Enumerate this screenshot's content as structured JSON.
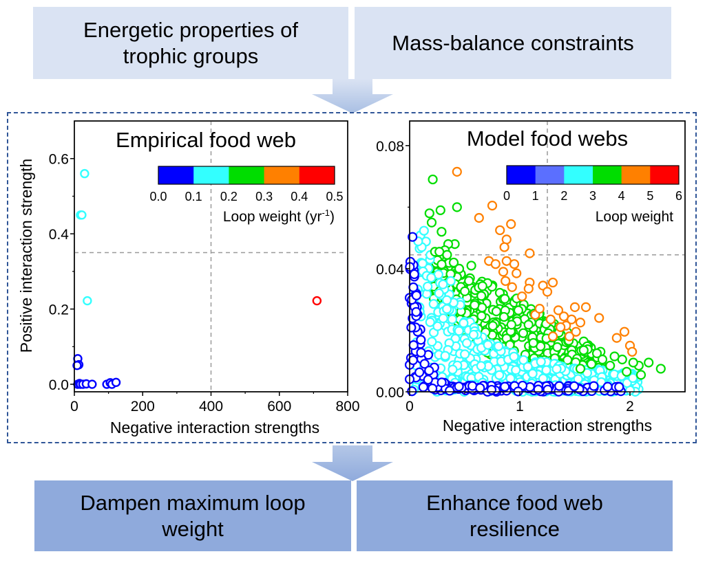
{
  "flow": {
    "inputs": [
      {
        "label_line1": "Energetic properties of",
        "label_line2": "trophic groups"
      },
      {
        "label_line1": "Mass-balance constraints",
        "label_line2": ""
      }
    ],
    "outputs": [
      {
        "label_line1": "Dampen maximum loop",
        "label_line2": "weight"
      },
      {
        "label_line1": "Enhance food web",
        "label_line2": "resilience"
      }
    ],
    "colors": {
      "input_bg": "#dae3f3",
      "output_bg": "#8faadc",
      "frame": "#2f5597",
      "arrow": "#b4c7e7"
    }
  },
  "chart_data": [
    {
      "type": "scatter",
      "title": "Empirical food web",
      "xlabel": "Negative interaction strengths",
      "ylabel": "Positive interaction strength",
      "xlim": [
        0,
        800
      ],
      "ylim": [
        -0.02,
        0.7
      ],
      "xticks": [
        "0",
        "200",
        "400",
        "600",
        "800"
      ],
      "xtick_values": [
        0,
        200,
        400,
        600,
        800
      ],
      "yticks": [
        "0.0",
        "0.2",
        "0.4",
        "0.6"
      ],
      "ytick_values": [
        0.0,
        0.2,
        0.4,
        0.6
      ],
      "reference_lines": {
        "x": 400,
        "y": 0.35
      },
      "colorbar": {
        "label": "Loop weight (yr",
        "label_sup": "-1",
        "label_end": ")",
        "ticks": [
          "0.0",
          "0.1",
          "0.2",
          "0.3",
          "0.4",
          "0.5"
        ],
        "colors": [
          "#0000ff",
          "#33ffff",
          "#00dd00",
          "#ff8000",
          "#ff0000"
        ]
      },
      "points": [
        {
          "x": 30,
          "y": 0.56,
          "c": 1
        },
        {
          "x": 18,
          "y": 0.45,
          "c": 1
        },
        {
          "x": 22,
          "y": 0.45,
          "c": 1
        },
        {
          "x": 38,
          "y": 0.222,
          "c": 1
        },
        {
          "x": 710,
          "y": 0.222,
          "c": 4
        },
        {
          "x": 10,
          "y": 0.068,
          "c": 0
        },
        {
          "x": 13,
          "y": 0.052,
          "c": 0
        },
        {
          "x": 8,
          "y": 0.05,
          "c": 0
        },
        {
          "x": 10,
          "y": 0.0,
          "c": 0
        },
        {
          "x": 15,
          "y": 0.002,
          "c": 0
        },
        {
          "x": 18,
          "y": 0.0,
          "c": 0
        },
        {
          "x": 25,
          "y": 0.0,
          "c": 0
        },
        {
          "x": 35,
          "y": 0.001,
          "c": 0
        },
        {
          "x": 52,
          "y": 0.0,
          "c": 0
        },
        {
          "x": 95,
          "y": 0.0,
          "c": 0
        },
        {
          "x": 105,
          "y": 0.004,
          "c": 0
        },
        {
          "x": 110,
          "y": 0.0,
          "c": 0
        },
        {
          "x": 122,
          "y": 0.005,
          "c": 0
        }
      ]
    },
    {
      "type": "scatter",
      "title": "Model food webs",
      "xlabel": "Negative interaction strengths",
      "ylabel": "",
      "xlim": [
        0,
        2.5
      ],
      "ylim": [
        0,
        0.088
      ],
      "xticks": [
        "0",
        "1",
        "2"
      ],
      "xtick_values": [
        0,
        1,
        2
      ],
      "yticks": [
        "0.00",
        "0.04",
        "0.08"
      ],
      "ytick_values": [
        0.0,
        0.04,
        0.08
      ],
      "reference_lines": {
        "x": 1.25,
        "y": 0.0445
      },
      "colorbar": {
        "label": "Loop weight",
        "label_sup": "",
        "label_end": "",
        "ticks": [
          "0",
          "1",
          "2",
          "3",
          "4",
          "5",
          "6"
        ],
        "colors": [
          "#0000ff",
          "#5b6fff",
          "#33ffff",
          "#00dd00",
          "#ff8000",
          "#ff0000"
        ]
      },
      "point_color_classes": {
        "blue": 0,
        "cyan": 2,
        "green": 3,
        "orange": 4
      },
      "points": [
        {
          "x": 0.43,
          "y": 0.0715,
          "c": 4
        },
        {
          "x": 0.21,
          "y": 0.069,
          "c": 3
        },
        {
          "x": 0.43,
          "y": 0.06,
          "c": 3
        },
        {
          "x": 0.28,
          "y": 0.059,
          "c": 3
        },
        {
          "x": 0.18,
          "y": 0.058,
          "c": 3
        },
        {
          "x": 0.2,
          "y": 0.055,
          "c": 3
        },
        {
          "x": 0.29,
          "y": 0.052,
          "c": 3
        },
        {
          "x": 0.41,
          "y": 0.048,
          "c": 3
        },
        {
          "x": 0.35,
          "y": 0.048,
          "c": 3
        },
        {
          "x": 0.32,
          "y": 0.046,
          "c": 3
        },
        {
          "x": 0.23,
          "y": 0.0455,
          "c": 3
        },
        {
          "x": 0.27,
          "y": 0.0455,
          "c": 3
        },
        {
          "x": 0.34,
          "y": 0.0445,
          "c": 3
        },
        {
          "x": 0.4,
          "y": 0.042,
          "c": 3
        },
        {
          "x": 0.45,
          "y": 0.04,
          "c": 3
        },
        {
          "x": 0.56,
          "y": 0.041,
          "c": 3
        },
        {
          "x": 0.63,
          "y": 0.0565,
          "c": 4
        },
        {
          "x": 0.75,
          "y": 0.0605,
          "c": 4
        },
        {
          "x": 0.92,
          "y": 0.0545,
          "c": 4
        },
        {
          "x": 0.82,
          "y": 0.0525,
          "c": 4
        },
        {
          "x": 0.88,
          "y": 0.0495,
          "c": 4
        },
        {
          "x": 0.86,
          "y": 0.047,
          "c": 4
        },
        {
          "x": 1.09,
          "y": 0.045,
          "c": 4
        },
        {
          "x": 0.72,
          "y": 0.0425,
          "c": 4
        },
        {
          "x": 0.78,
          "y": 0.0415,
          "c": 4
        },
        {
          "x": 0.88,
          "y": 0.0425,
          "c": 4
        },
        {
          "x": 0.95,
          "y": 0.0415,
          "c": 4
        },
        {
          "x": 0.85,
          "y": 0.039,
          "c": 4
        },
        {
          "x": 0.97,
          "y": 0.0385,
          "c": 4
        },
        {
          "x": 0.87,
          "y": 0.036,
          "c": 4
        },
        {
          "x": 1.09,
          "y": 0.0355,
          "c": 4
        },
        {
          "x": 0.93,
          "y": 0.034,
          "c": 4
        },
        {
          "x": 1.02,
          "y": 0.031,
          "c": 4
        },
        {
          "x": 1.08,
          "y": 0.0335,
          "c": 4
        },
        {
          "x": 1.21,
          "y": 0.0345,
          "c": 4
        },
        {
          "x": 1.3,
          "y": 0.0355,
          "c": 4
        },
        {
          "x": 1.25,
          "y": 0.0325,
          "c": 4
        },
        {
          "x": 1.5,
          "y": 0.0275,
          "c": 4
        },
        {
          "x": 1.35,
          "y": 0.0265,
          "c": 4
        },
        {
          "x": 1.4,
          "y": 0.0245,
          "c": 4
        },
        {
          "x": 1.47,
          "y": 0.0235,
          "c": 4
        },
        {
          "x": 1.6,
          "y": 0.0275,
          "c": 4
        },
        {
          "x": 1.72,
          "y": 0.024,
          "c": 4
        },
        {
          "x": 1.28,
          "y": 0.0235,
          "c": 4
        },
        {
          "x": 1.42,
          "y": 0.0215,
          "c": 4
        },
        {
          "x": 1.37,
          "y": 0.021,
          "c": 4
        },
        {
          "x": 1.45,
          "y": 0.018,
          "c": 4
        },
        {
          "x": 1.51,
          "y": 0.0195,
          "c": 4
        },
        {
          "x": 1.95,
          "y": 0.0195,
          "c": 4
        },
        {
          "x": 1.88,
          "y": 0.0175,
          "c": 4
        },
        {
          "x": 2.0,
          "y": 0.015,
          "c": 4
        },
        {
          "x": 2.02,
          "y": 0.013,
          "c": 4
        },
        {
          "x": 1.14,
          "y": 0.025,
          "c": 4
        },
        {
          "x": 1.18,
          "y": 0.027,
          "c": 4
        },
        {
          "x": 1.55,
          "y": 0.0225,
          "c": 4
        },
        {
          "x": 1.3,
          "y": 0.018,
          "c": 4
        },
        {
          "x": 2.28,
          "y": 0.0075,
          "c": 3
        },
        {
          "x": 2.17,
          "y": 0.0095,
          "c": 3
        },
        {
          "x": 2.08,
          "y": 0.0085,
          "c": 3
        },
        {
          "x": 2.1,
          "y": 0.0055,
          "c": 3
        },
        {
          "x": 1.93,
          "y": 0.0105,
          "c": 3
        },
        {
          "x": 1.86,
          "y": 0.0115,
          "c": 3
        },
        {
          "x": 1.97,
          "y": 0.0065,
          "c": 3
        },
        {
          "x": 1.82,
          "y": 0.0085,
          "c": 3
        },
        {
          "x": 1.75,
          "y": 0.0105,
          "c": 3
        },
        {
          "x": 1.7,
          "y": 0.0125,
          "c": 3
        },
        {
          "x": 1.65,
          "y": 0.009,
          "c": 3
        },
        {
          "x": 1.58,
          "y": 0.0135,
          "c": 3
        },
        {
          "x": 1.55,
          "y": 0.0075,
          "c": 3
        },
        {
          "x": 2.03,
          "y": 0.0095,
          "c": 3
        }
      ],
      "point_regions": [
        {
          "c": 3,
          "count": 420,
          "x_range": [
            0.2,
            1.75
          ],
          "y_max_line": [
            [
              0.2,
              0.045
            ],
            [
              0.6,
              0.038
            ],
            [
              1.0,
              0.03
            ],
            [
              1.4,
              0.02
            ],
            [
              1.8,
              0.012
            ]
          ],
          "y_min_line": [
            [
              0.2,
              0.03
            ],
            [
              0.6,
              0.015
            ],
            [
              1.0,
              0.006
            ],
            [
              1.4,
              0.004
            ],
            [
              1.8,
              0.004
            ]
          ]
        },
        {
          "c": 2,
          "count": 520,
          "x_range": [
            0.03,
            2.08
          ],
          "y_max_line": [
            [
              0.03,
              0.06
            ],
            [
              0.25,
              0.045
            ],
            [
              0.6,
              0.02
            ],
            [
              1.0,
              0.012
            ],
            [
              1.5,
              0.008
            ],
            [
              2.05,
              0.006
            ]
          ],
          "y_min_line": [
            [
              0.03,
              0.0
            ],
            [
              2.08,
              0.0
            ]
          ]
        },
        {
          "c": 0,
          "count": 160,
          "x_range": [
            0.0,
            1.95
          ],
          "y_max_line": [
            [
              0.0,
              0.066
            ],
            [
              0.05,
              0.04
            ],
            [
              0.12,
              0.018
            ],
            [
              0.25,
              0.006
            ],
            [
              0.4,
              0.002
            ],
            [
              1.95,
              0.002
            ]
          ],
          "y_min_line": [
            [
              0.0,
              0.0
            ],
            [
              1.95,
              0.0
            ]
          ]
        }
      ]
    }
  ]
}
